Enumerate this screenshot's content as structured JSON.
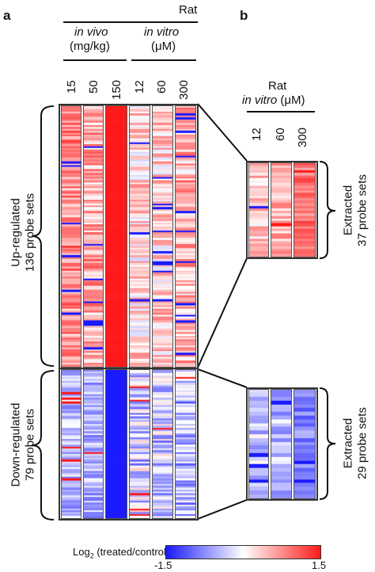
{
  "panel_a": {
    "letter": "a",
    "species": "Rat",
    "group_vivo": "in vivo",
    "group_vivo_unit": "(mg/kg)",
    "group_vitro": "in vitro",
    "group_vitro_unit": "(μM)",
    "doses": [
      "15",
      "50",
      "150",
      "12",
      "60",
      "300"
    ],
    "up_label_1": "Up-regulated",
    "up_label_2": "136 probe sets",
    "down_label_1": "Down-regulated",
    "down_label_2": "79 probe sets",
    "up_count": 136,
    "down_count": 79
  },
  "panel_b": {
    "letter": "b",
    "species": "Rat",
    "group_label": "in vitro",
    "group_unit": "(μM)",
    "doses": [
      "12",
      "60",
      "300"
    ],
    "up_label_1": "Extracted",
    "up_label_2": "37 probe sets",
    "down_label_1": "Extracted",
    "down_label_2": "29 probe sets",
    "up_count": 37,
    "down_count": 29
  },
  "colorbar": {
    "title": "Log",
    "title_sub": "2",
    "title_rest": " (treated/control)",
    "min_label": "-1.5",
    "max_label": "1.5",
    "min": -1.5,
    "max": 1.5,
    "low_color": "#1a1aff",
    "mid_color": "#ffffff",
    "high_color": "#ff1a1a"
  }
}
